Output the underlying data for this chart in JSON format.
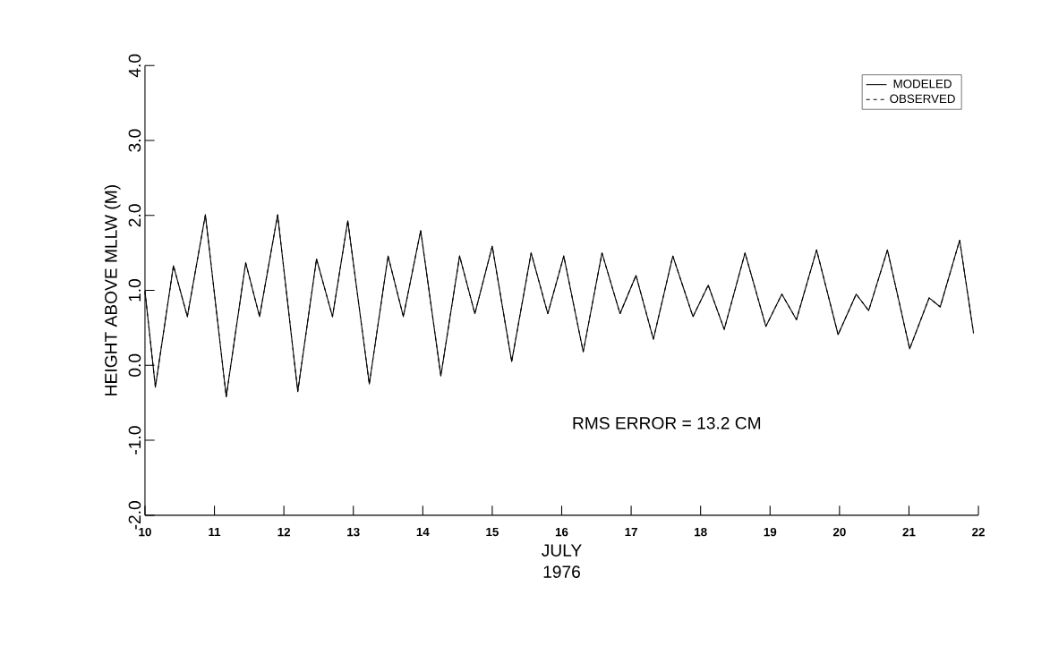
{
  "chart_data": {
    "type": "line",
    "xlabel": "JULY 1976",
    "ylabel": "HEIGHT ABOVE MLLW (M)",
    "x": [
      10.0,
      10.15,
      10.41,
      10.61,
      10.87,
      11.17,
      11.45,
      11.65,
      11.91,
      12.2,
      12.47,
      12.7,
      12.92,
      13.23,
      13.5,
      13.72,
      13.97,
      14.26,
      14.53,
      14.75,
      15.0,
      15.28,
      15.56,
      15.8,
      16.03,
      16.31,
      16.58,
      16.84,
      17.07,
      17.32,
      17.6,
      17.89,
      18.11,
      18.34,
      18.64,
      18.94,
      19.17,
      19.38,
      19.67,
      19.98,
      20.24,
      20.42,
      20.69,
      21.01,
      21.29,
      21.45,
      21.73,
      21.93
    ],
    "series": [
      {
        "name": "MODELED",
        "color": "#000000",
        "line_style": "solid",
        "values": [
          0.99,
          -0.29,
          1.33,
          0.65,
          2.01,
          -0.42,
          1.37,
          0.65,
          2.01,
          -0.35,
          1.42,
          0.65,
          1.93,
          -0.25,
          1.46,
          0.65,
          1.8,
          -0.14,
          1.46,
          0.69,
          1.59,
          0.05,
          1.5,
          0.69,
          1.46,
          0.18,
          1.5,
          0.69,
          1.2,
          0.35,
          1.46,
          0.65,
          1.07,
          0.48,
          1.5,
          0.52,
          0.95,
          0.61,
          1.54,
          0.41,
          0.95,
          0.73,
          1.54,
          0.22,
          0.9,
          0.78,
          1.67,
          0.43
        ]
      },
      {
        "name": "OBSERVED",
        "color": "#000000",
        "line_style": "dashed",
        "values": [
          0.99,
          -0.29,
          1.33,
          0.65,
          2.01,
          -0.42,
          1.37,
          0.65,
          2.01,
          -0.35,
          1.42,
          0.65,
          1.93,
          -0.25,
          1.46,
          0.65,
          1.8,
          -0.14,
          1.46,
          0.69,
          1.59,
          0.05,
          1.5,
          0.69,
          1.46,
          0.18,
          1.5,
          0.69,
          1.2,
          0.35,
          1.46,
          0.65,
          1.07,
          0.48,
          1.5,
          0.52,
          0.95,
          0.61,
          1.54,
          0.41,
          0.95,
          0.73,
          1.54,
          0.22,
          0.9,
          0.78,
          1.67,
          0.43
        ]
      }
    ],
    "xlim": [
      10,
      22
    ],
    "ylim": [
      -2,
      4
    ],
    "xticks": [
      10,
      11,
      12,
      13,
      14,
      15,
      16,
      17,
      18,
      19,
      20,
      21,
      22
    ],
    "yticks": [
      {
        "value": -2,
        "label": "-2.0"
      },
      {
        "value": -1,
        "label": "-1.0"
      },
      {
        "value": 0,
        "label": "0.0"
      },
      {
        "value": 1,
        "label": "1.0"
      },
      {
        "value": 2,
        "label": "2.0"
      },
      {
        "value": 3,
        "label": "3.0"
      },
      {
        "value": 4,
        "label": "4.0"
      }
    ],
    "legend": "top right",
    "annotations": [
      "RMS ERROR =  13.2  CM"
    ]
  }
}
